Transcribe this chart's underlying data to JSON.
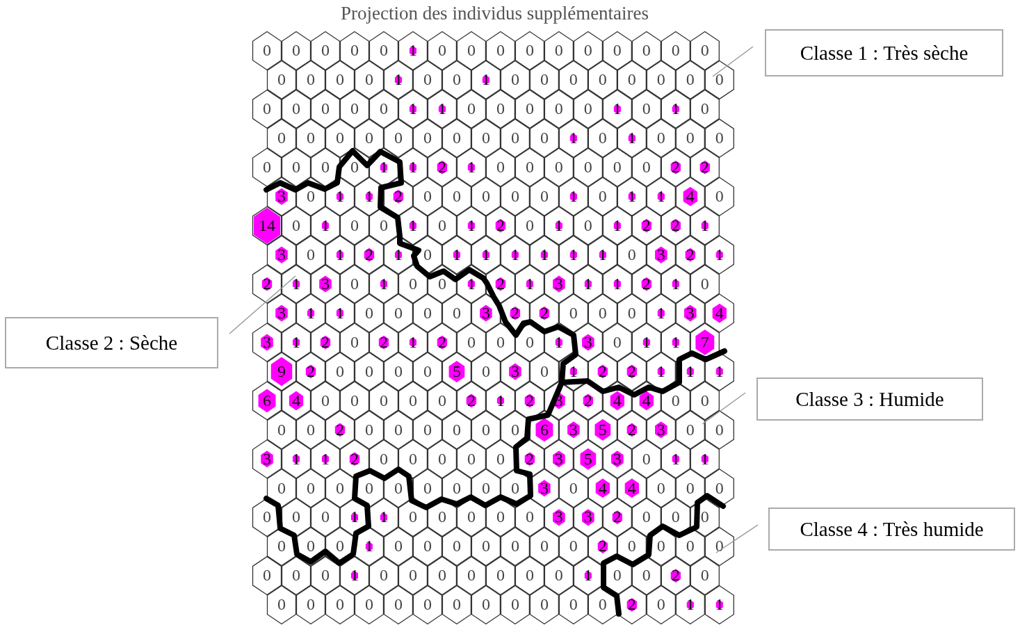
{
  "chart_data": {
    "type": "other",
    "data_labels": true,
    "title": "Projection des individus supplémentaires",
    "color": "#ff00ff",
    "values": [
      0,
      0,
      0,
      0,
      0,
      1,
      0,
      0,
      0,
      0,
      0,
      0,
      0,
      0,
      0,
      0,
      0,
      0,
      0,
      0,
      1,
      0,
      0,
      1,
      0,
      0,
      0,
      0,
      0,
      0,
      0,
      0,
      0,
      0,
      0,
      0,
      0,
      1,
      1,
      0,
      0,
      0,
      0,
      0,
      1,
      0,
      1,
      0,
      0,
      0,
      0,
      0,
      0,
      0,
      0,
      0,
      0,
      0,
      1,
      0,
      1,
      0,
      0,
      0,
      0,
      0,
      0,
      0,
      1,
      1,
      2,
      1,
      0,
      0,
      0,
      0,
      0,
      0,
      2,
      2,
      3,
      0,
      1,
      1,
      2,
      0,
      0,
      0,
      0,
      0,
      1,
      0,
      1,
      1,
      4,
      0,
      14,
      0,
      1,
      0,
      0,
      1,
      0,
      1,
      2,
      0,
      1,
      0,
      1,
      2,
      2,
      1,
      3,
      0,
      1,
      2,
      1,
      0,
      1,
      1,
      1,
      1,
      1,
      1,
      0,
      3,
      2,
      1,
      2,
      1,
      3,
      0,
      1,
      0,
      0,
      1,
      2,
      1,
      3,
      1,
      1,
      2,
      1,
      0,
      3,
      1,
      1,
      0,
      0,
      0,
      0,
      3,
      2,
      2,
      0,
      0,
      0,
      1,
      3,
      4,
      3,
      1,
      2,
      0,
      2,
      1,
      2,
      0,
      0,
      0,
      1,
      3,
      0,
      1,
      1,
      7,
      9,
      2,
      0,
      0,
      0,
      0,
      5,
      0,
      3,
      0,
      1,
      2,
      2,
      1,
      1,
      1,
      6,
      4,
      0,
      0,
      0,
      0,
      0,
      2,
      1,
      2,
      3,
      2,
      4,
      4,
      0,
      0,
      0,
      0,
      2,
      0,
      0,
      0,
      0,
      0,
      0,
      6,
      3,
      5,
      2,
      3,
      0,
      0,
      3,
      1,
      1,
      2,
      0,
      0,
      0,
      0,
      0,
      2,
      3,
      5,
      3,
      0,
      1,
      1,
      0,
      0,
      0,
      0,
      0,
      0,
      0,
      0,
      0,
      3,
      0,
      4,
      4,
      0,
      0,
      0,
      0,
      0,
      0,
      1,
      1,
      0,
      0,
      0,
      0,
      0,
      3,
      3,
      2,
      0,
      0,
      0,
      0,
      0,
      0,
      1,
      0,
      0,
      0,
      0,
      0,
      0,
      0,
      2,
      0,
      0,
      0,
      0,
      0,
      0,
      0,
      1,
      0,
      0,
      0,
      0,
      0,
      0,
      0,
      1,
      0,
      0,
      2,
      0,
      0,
      0,
      0,
      0,
      0,
      0,
      0,
      0,
      0,
      0,
      0,
      0,
      2,
      0,
      1,
      1
    ],
    "annotations": [
      "Classe 1 : Très sèche",
      "Classe 2 : Sèche",
      "Classe 3 : Humide",
      "Classe 4 : Très humide"
    ]
  }
}
